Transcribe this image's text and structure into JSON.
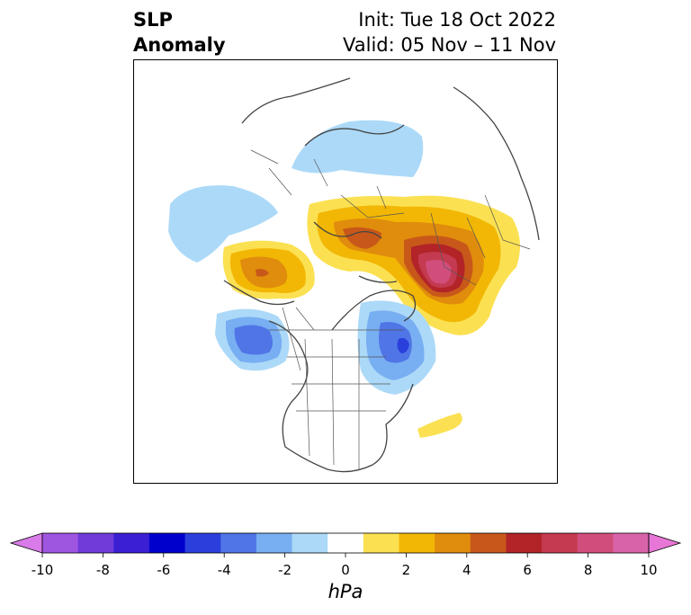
{
  "title": {
    "left_line1": "SLP",
    "left_line2": "Anomaly",
    "right_line1": "Init: Tue 18 Oct 2022",
    "right_line2": "Valid: 05 Nov – 11 Nov"
  },
  "colorbar": {
    "unit": "hPa",
    "ticks": [
      "-10",
      "-8",
      "-6",
      "-4",
      "-2",
      "0",
      "2",
      "4",
      "6",
      "8",
      "10"
    ],
    "colors": [
      "#d97be8",
      "#9e55e0",
      "#6f3bd9",
      "#3a1fd3",
      "#0000cc",
      "#2b3fdc",
      "#4f75e6",
      "#78aef2",
      "#acd9f8",
      "#ffffff",
      "#fbe152",
      "#f2b705",
      "#e08c0c",
      "#c8581a",
      "#b22428",
      "#c43a50",
      "#d14e7c",
      "#d863a8",
      "#e776d6"
    ]
  },
  "map": {
    "projection": "polar stereographic",
    "field": "sea level pressure anomaly",
    "anomaly_centers": [
      {
        "type": "positive",
        "region": "Siberia / Russia",
        "max_hPa": 8
      },
      {
        "type": "positive",
        "region": "Eastern Europe / Asia",
        "max_hPa": 4
      },
      {
        "type": "positive",
        "region": "Northwest Pacific",
        "max_hPa": 4
      },
      {
        "type": "negative",
        "region": "Gulf of Alaska",
        "min_hPa": -5
      },
      {
        "type": "negative",
        "region": "Hudson Bay / Labrador",
        "min_hPa": -6
      },
      {
        "type": "negative",
        "region": "Arctic / North Atlantic",
        "min_hPa": -2
      },
      {
        "type": "positive",
        "region": "Central Atlantic",
        "max_hPa": 1
      }
    ]
  }
}
